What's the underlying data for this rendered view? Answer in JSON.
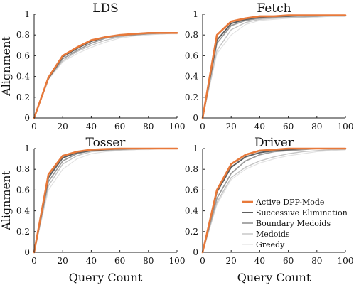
{
  "chart_data": [
    {
      "type": "line",
      "title": "LDS",
      "xlabel": "",
      "ylabel": "Alignment",
      "xlim": [
        0,
        100
      ],
      "ylim": [
        0,
        1
      ],
      "x": [
        0,
        10,
        20,
        30,
        40,
        50,
        60,
        70,
        80,
        90,
        100
      ],
      "xticks": [
        "0",
        "20",
        "40",
        "60",
        "80",
        "100"
      ],
      "yticks": [
        "0",
        "0.2",
        "0.4",
        "0.6",
        "0.8",
        "1"
      ],
      "series": [
        {
          "name": "Active DPP-Mode",
          "values": [
            0.0,
            0.39,
            0.6,
            0.68,
            0.75,
            0.78,
            0.8,
            0.81,
            0.82,
            0.82,
            0.82
          ]
        },
        {
          "name": "Successive Elimination",
          "values": [
            0.0,
            0.38,
            0.59,
            0.67,
            0.74,
            0.78,
            0.8,
            0.81,
            0.82,
            0.82,
            0.82
          ]
        },
        {
          "name": "Boundary Medoids",
          "values": [
            0.0,
            0.38,
            0.57,
            0.65,
            0.72,
            0.77,
            0.79,
            0.8,
            0.81,
            0.82,
            0.82
          ]
        },
        {
          "name": "Medoids",
          "values": [
            0.0,
            0.38,
            0.55,
            0.64,
            0.7,
            0.75,
            0.78,
            0.8,
            0.81,
            0.81,
            0.82
          ]
        },
        {
          "name": "Greedy",
          "values": [
            0.0,
            0.37,
            0.54,
            0.62,
            0.68,
            0.73,
            0.77,
            0.79,
            0.8,
            0.81,
            0.81
          ]
        }
      ]
    },
    {
      "type": "line",
      "title": "Fetch",
      "xlabel": "",
      "ylabel": "",
      "xlim": [
        0,
        100
      ],
      "ylim": [
        0,
        1
      ],
      "x": [
        0,
        10,
        20,
        30,
        40,
        50,
        60,
        70,
        80,
        90,
        100
      ],
      "xticks": [
        "0",
        "20",
        "40",
        "60",
        "80",
        "100"
      ],
      "yticks": [
        "0",
        "0.2",
        "0.4",
        "0.6",
        "0.8",
        "1"
      ],
      "series": [
        {
          "name": "Active DPP-Mode",
          "values": [
            0.0,
            0.8,
            0.93,
            0.96,
            0.98,
            0.98,
            0.99,
            0.99,
            0.99,
            0.99,
            0.99
          ]
        },
        {
          "name": "Successive Elimination",
          "values": [
            0.0,
            0.75,
            0.91,
            0.95,
            0.97,
            0.98,
            0.98,
            0.99,
            0.99,
            0.99,
            0.99
          ]
        },
        {
          "name": "Boundary Medoids",
          "values": [
            0.0,
            0.72,
            0.89,
            0.94,
            0.96,
            0.97,
            0.98,
            0.98,
            0.98,
            0.99,
            0.99
          ]
        },
        {
          "name": "Medoids",
          "values": [
            0.0,
            0.65,
            0.85,
            0.92,
            0.95,
            0.96,
            0.97,
            0.97,
            0.98,
            0.98,
            0.98
          ]
        },
        {
          "name": "Greedy",
          "values": [
            0.0,
            0.62,
            0.8,
            0.9,
            0.94,
            0.95,
            0.96,
            0.97,
            0.97,
            0.98,
            0.98
          ]
        }
      ]
    },
    {
      "type": "line",
      "title": "Tosser",
      "xlabel": "Query Count",
      "ylabel": "Alignment",
      "xlim": [
        0,
        100
      ],
      "ylim": [
        0,
        1
      ],
      "x": [
        0,
        10,
        20,
        30,
        40,
        50,
        60,
        70,
        80,
        90,
        100
      ],
      "xticks": [
        "0",
        "20",
        "40",
        "60",
        "80",
        "100"
      ],
      "yticks": [
        "0",
        "0.2",
        "0.4",
        "0.6",
        "0.8",
        "1"
      ],
      "series": [
        {
          "name": "Active DPP-Mode",
          "values": [
            0.0,
            0.75,
            0.93,
            0.97,
            0.99,
            0.995,
            1.0,
            1.0,
            1.0,
            1.0,
            1.0
          ]
        },
        {
          "name": "Successive Elimination",
          "values": [
            0.0,
            0.72,
            0.91,
            0.96,
            0.98,
            0.99,
            1.0,
            1.0,
            1.0,
            1.0,
            1.0
          ]
        },
        {
          "name": "Boundary Medoids",
          "values": [
            0.0,
            0.68,
            0.88,
            0.95,
            0.98,
            0.99,
            0.99,
            1.0,
            1.0,
            1.0,
            1.0
          ]
        },
        {
          "name": "Medoids",
          "values": [
            0.0,
            0.64,
            0.85,
            0.93,
            0.97,
            0.98,
            0.99,
            0.99,
            1.0,
            1.0,
            1.0
          ]
        },
        {
          "name": "Greedy",
          "values": [
            0.0,
            0.6,
            0.8,
            0.9,
            0.95,
            0.97,
            0.98,
            0.99,
            0.99,
            1.0,
            1.0
          ]
        }
      ]
    },
    {
      "type": "line",
      "title": "Driver",
      "xlabel": "Query Count",
      "ylabel": "",
      "xlim": [
        0,
        100
      ],
      "ylim": [
        0,
        1
      ],
      "x": [
        0,
        10,
        20,
        30,
        40,
        50,
        60,
        70,
        80,
        90,
        100
      ],
      "xticks": [
        "0",
        "20",
        "40",
        "60",
        "80",
        "100"
      ],
      "yticks": [
        "0",
        "0.2",
        "0.4",
        "0.6",
        "0.8",
        "1"
      ],
      "legend_position": "lower-right",
      "series": [
        {
          "name": "Active DPP-Mode",
          "values": [
            0.0,
            0.6,
            0.85,
            0.94,
            0.98,
            0.99,
            1.0,
            1.0,
            1.0,
            1.0,
            1.0
          ]
        },
        {
          "name": "Successive Elimination",
          "values": [
            0.0,
            0.58,
            0.82,
            0.92,
            0.96,
            0.98,
            0.99,
            1.0,
            1.0,
            1.0,
            1.0
          ]
        },
        {
          "name": "Boundary Medoids",
          "values": [
            0.0,
            0.52,
            0.76,
            0.88,
            0.94,
            0.97,
            0.98,
            0.99,
            1.0,
            1.0,
            1.0
          ]
        },
        {
          "name": "Medoids",
          "values": [
            0.0,
            0.48,
            0.72,
            0.82,
            0.88,
            0.92,
            0.95,
            0.97,
            0.98,
            0.99,
            0.99
          ]
        },
        {
          "name": "Greedy",
          "values": [
            0.0,
            0.46,
            0.7,
            0.8,
            0.86,
            0.9,
            0.93,
            0.95,
            0.97,
            0.98,
            0.99
          ]
        }
      ]
    }
  ],
  "legend": {
    "entries": [
      "Active DPP-Mode",
      "Successive Elimination",
      "Boundary Medoids",
      "Medoids",
      "Greedy"
    ]
  },
  "colors": {
    "Active DPP-Mode": "#e8793a",
    "Successive Elimination": "#5e5e5e",
    "Boundary Medoids": "#9a9a9a",
    "Medoids": "#c4c4c4",
    "Greedy": "#e2e2e2",
    "axis": "#222222"
  }
}
